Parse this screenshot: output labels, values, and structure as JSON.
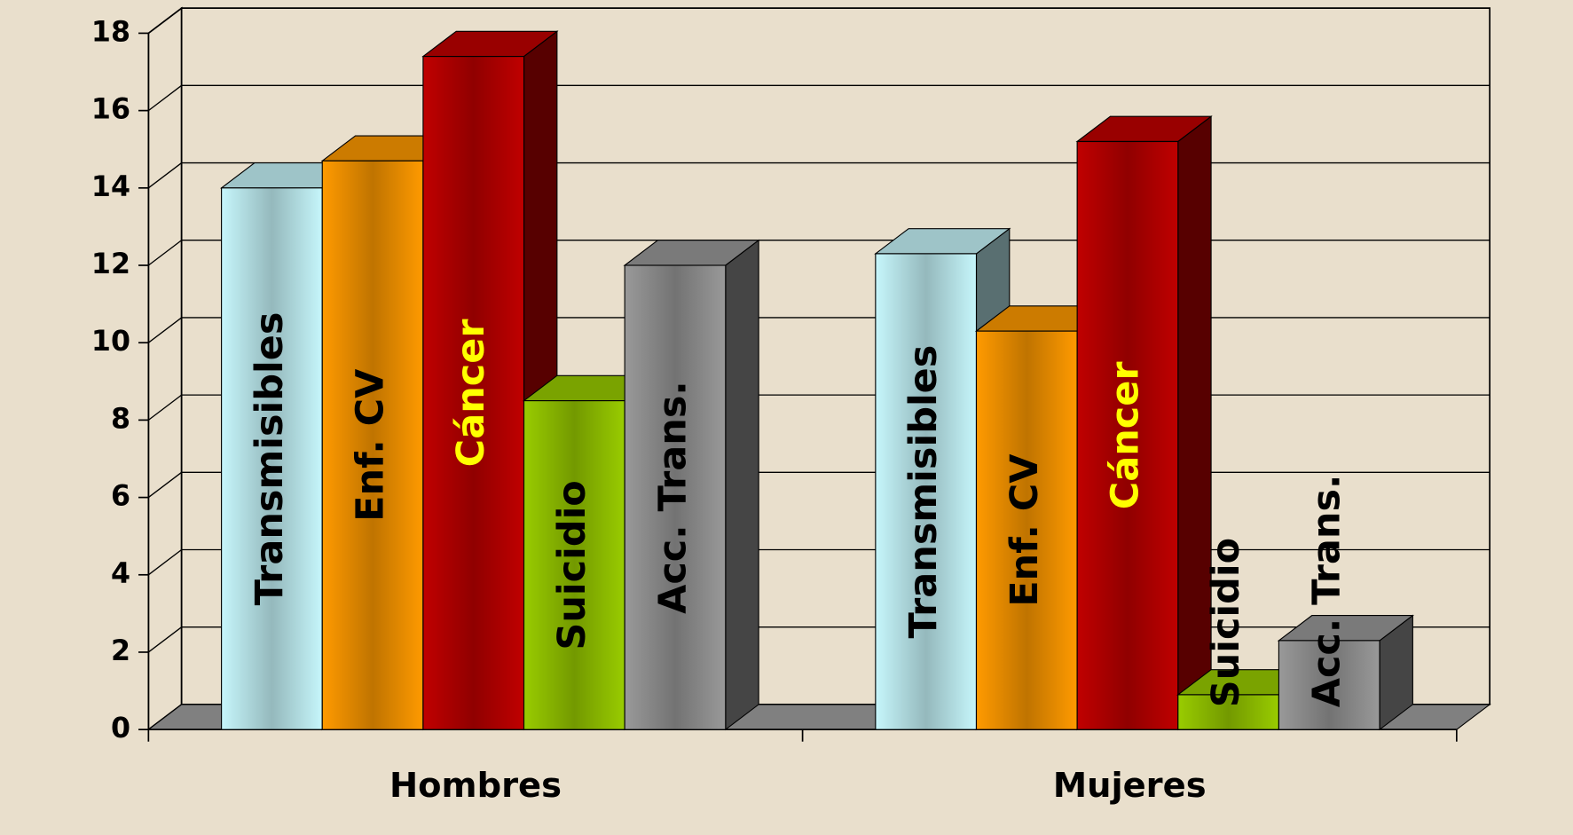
{
  "chart_data": {
    "type": "bar3d",
    "categories": [
      "Hombres",
      "Mujeres"
    ],
    "series": [
      {
        "name": "Transmisibles",
        "color": "#c6f6fb",
        "text_color": "#000000",
        "values": [
          14,
          12.3
        ]
      },
      {
        "name": "Enf. CV",
        "color": "#ff9a00",
        "text_color": "#000000",
        "values": [
          14.7,
          10.3
        ]
      },
      {
        "name": "Cáncer",
        "color": "#c00000",
        "text_color": "#ffff00",
        "values": [
          17.4,
          15.2
        ]
      },
      {
        "name": "Suicidio",
        "color": "#99cc00",
        "text_color": "#000000",
        "values": [
          8.5,
          0.9
        ]
      },
      {
        "name": "Acc. Trans.",
        "color": "#999999",
        "text_color": "#000000",
        "values": [
          12,
          2.3
        ]
      }
    ],
    "ylim": [
      0,
      18
    ],
    "yticks": [
      0,
      2,
      4,
      6,
      8,
      10,
      12,
      14,
      16,
      18
    ],
    "grid": true
  }
}
